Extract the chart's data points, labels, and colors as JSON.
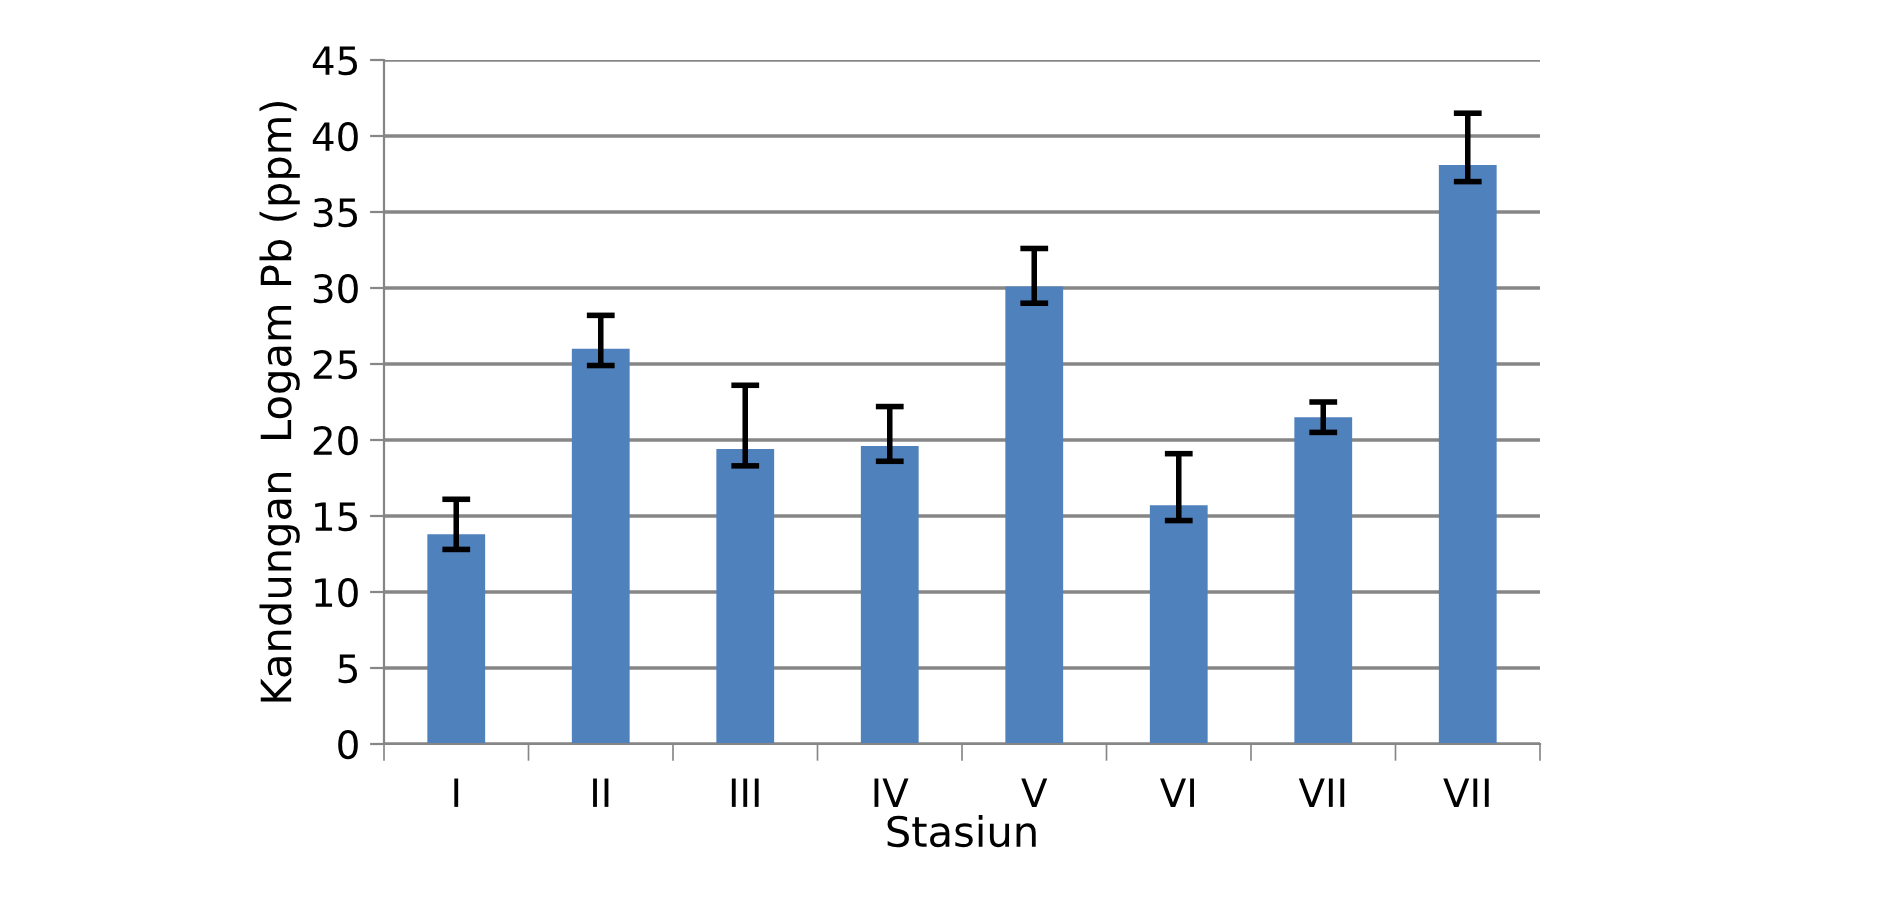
{
  "chart_data": {
    "type": "bar",
    "xlabel": "Stasiun",
    "ylabel": "Kandungan  Logam Pb (ppm)",
    "categories": [
      "I",
      "II",
      "III",
      "IV",
      "V",
      "VI",
      "VII",
      "VII"
    ],
    "values": [
      13.8,
      26.0,
      19.4,
      19.6,
      30.1,
      15.7,
      21.5,
      38.1
    ],
    "errors": [
      [
        12.8,
        16.1
      ],
      [
        24.9,
        28.2
      ],
      [
        18.3,
        23.6
      ],
      [
        18.6,
        22.2
      ],
      [
        29.0,
        32.6
      ],
      [
        14.7,
        19.1
      ],
      [
        20.5,
        22.5
      ],
      [
        37.0,
        41.5
      ]
    ],
    "color": "#4f81bd",
    "ylim": [
      0,
      45
    ],
    "yticks": [
      0,
      5,
      10,
      15,
      20,
      25,
      30,
      35,
      40,
      45
    ],
    "grid": "y",
    "legend": false
  }
}
